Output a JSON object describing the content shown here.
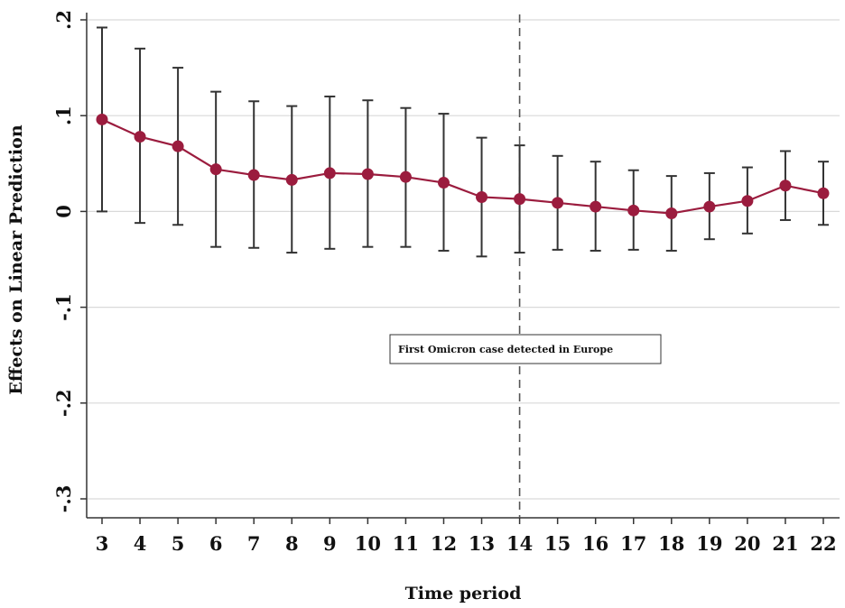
{
  "chart_data": {
    "type": "line",
    "title": "",
    "xlabel": "Time period",
    "ylabel": "Effects on Linear Prediction",
    "x": [
      3,
      4,
      5,
      6,
      7,
      8,
      9,
      10,
      11,
      12,
      13,
      14,
      15,
      16,
      17,
      18,
      19,
      20,
      21,
      22
    ],
    "series": [
      {
        "values": [
          0.096,
          0.078,
          0.068,
          0.044,
          0.038,
          0.033,
          0.04,
          0.039,
          0.036,
          0.03,
          0.015,
          0.013,
          0.009,
          0.005,
          0.001,
          -0.002,
          0.005,
          0.011,
          0.027,
          0.019
        ],
        "ci_upper": [
          0.192,
          0.17,
          0.15,
          0.125,
          0.115,
          0.11,
          0.12,
          0.116,
          0.108,
          0.102,
          0.077,
          0.069,
          0.058,
          0.052,
          0.043,
          0.037,
          0.04,
          0.046,
          0.063,
          0.052
        ],
        "ci_lower": [
          0.0,
          -0.012,
          -0.014,
          -0.037,
          -0.038,
          -0.043,
          -0.039,
          -0.037,
          -0.037,
          -0.041,
          -0.047,
          -0.043,
          -0.04,
          -0.041,
          -0.04,
          -0.041,
          -0.029,
          -0.023,
          -0.009,
          -0.014
        ],
        "color": "#9b1c3e"
      }
    ],
    "ylim": [
      -0.3,
      0.2
    ],
    "yticks": [
      -0.3,
      -0.2,
      -0.1,
      0,
      0.1,
      0.2
    ],
    "ytick_labels": [
      "-.3",
      "-.2",
      "-.1",
      "0",
      ".1",
      ".2"
    ],
    "xlim": [
      3,
      22
    ],
    "grid": true,
    "vline_x": 14,
    "annotation": "First Omicron case detected in Europe",
    "errorbar_color": "#333333",
    "grid_color": "#d9d9d9"
  }
}
